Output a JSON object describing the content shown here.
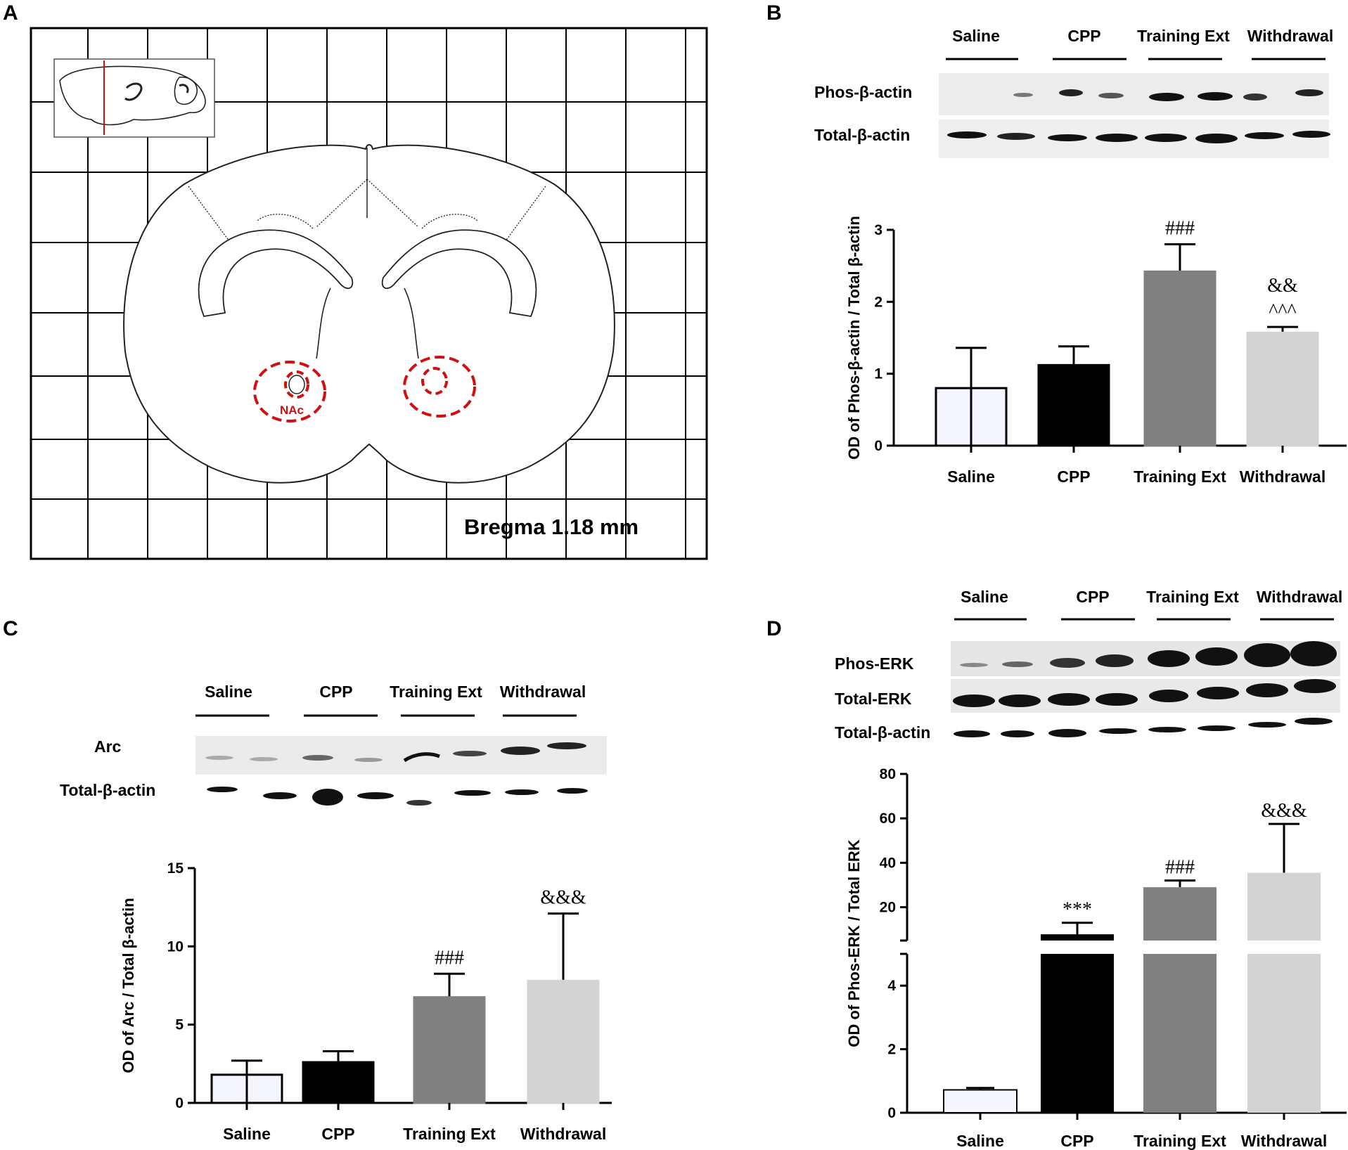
{
  "panels": {
    "a": {
      "label": "A",
      "bregma": "Bregma 1.18 mm",
      "region_label": "NAc"
    },
    "b": {
      "label": "B",
      "lanes": [
        "Saline",
        "CPP",
        "Training Ext",
        "Withdrawal"
      ],
      "blot_labels": [
        "Phos-β-actin",
        "Total-β-actin"
      ]
    },
    "c": {
      "label": "C",
      "lanes": [
        "Saline",
        "CPP",
        "Training Ext",
        "Withdrawal"
      ],
      "blot_labels": [
        "Arc",
        "Total-β-actin"
      ]
    },
    "d": {
      "label": "D",
      "lanes": [
        "Saline",
        "CPP",
        "Training Ext",
        "Withdrawal"
      ],
      "blot_labels": [
        "Phos-ERK",
        "Total-ERK",
        "Total-β-actin"
      ]
    }
  },
  "colors": {
    "saline": "#f5f5ff",
    "cpp": "#000000",
    "training_ext": "#808080",
    "withdrawal": "#d3d3d3",
    "nac_outline": "#d01010"
  },
  "chart_data": [
    {
      "id": "B",
      "type": "bar",
      "categories": [
        "Saline",
        "CPP",
        "Training Ext",
        "Withdrawal"
      ],
      "values": [
        0.8,
        1.12,
        2.42,
        1.57
      ],
      "errors": [
        0.56,
        0.26,
        0.38,
        0.08
      ],
      "annotations": [
        [],
        [],
        [
          "###"
        ],
        [
          "^^^",
          "&&"
        ]
      ],
      "ylabel": "OD of Phos-β-actin / Total β-actin",
      "ylim": [
        0,
        3
      ],
      "yticks": [
        "0",
        "1",
        "2",
        "3"
      ],
      "ytick_values": [
        0,
        1,
        2,
        3
      ]
    },
    {
      "id": "C",
      "type": "bar",
      "categories": [
        "Saline",
        "CPP",
        "Training Ext",
        "Withdrawal"
      ],
      "values": [
        1.8,
        2.6,
        6.75,
        7.8
      ],
      "errors": [
        0.9,
        0.7,
        1.5,
        4.3
      ],
      "annotations": [
        [],
        [],
        [
          "###"
        ],
        [
          "&&&"
        ]
      ],
      "ylabel": "OD of Arc / Total β-actin",
      "ylim": [
        0,
        15
      ],
      "yticks": [
        "0",
        "5",
        "10",
        "15"
      ],
      "ytick_values": [
        0,
        5,
        10,
        15
      ]
    },
    {
      "id": "D",
      "type": "bar",
      "broken_axis": true,
      "categories": [
        "Saline",
        "CPP",
        "Training Ext",
        "Withdrawal"
      ],
      "values": [
        0.72,
        7,
        29,
        35.5
      ],
      "errors": [
        0.06,
        6,
        3,
        22
      ],
      "annotations": [
        [],
        [
          "***"
        ],
        [
          "###"
        ],
        [
          "&&&"
        ]
      ],
      "ylabel": "OD of Phos-ERK / Total ERK",
      "lower_ylim": [
        0,
        5
      ],
      "lower_yticks": [
        "0",
        "2",
        "4"
      ],
      "lower_ytick_values": [
        0,
        2,
        4
      ],
      "upper_ylim": [
        5,
        80
      ],
      "upper_yticks": [
        "20",
        "40",
        "60",
        "80"
      ],
      "upper_ytick_values": [
        20,
        40,
        60,
        80
      ]
    }
  ]
}
